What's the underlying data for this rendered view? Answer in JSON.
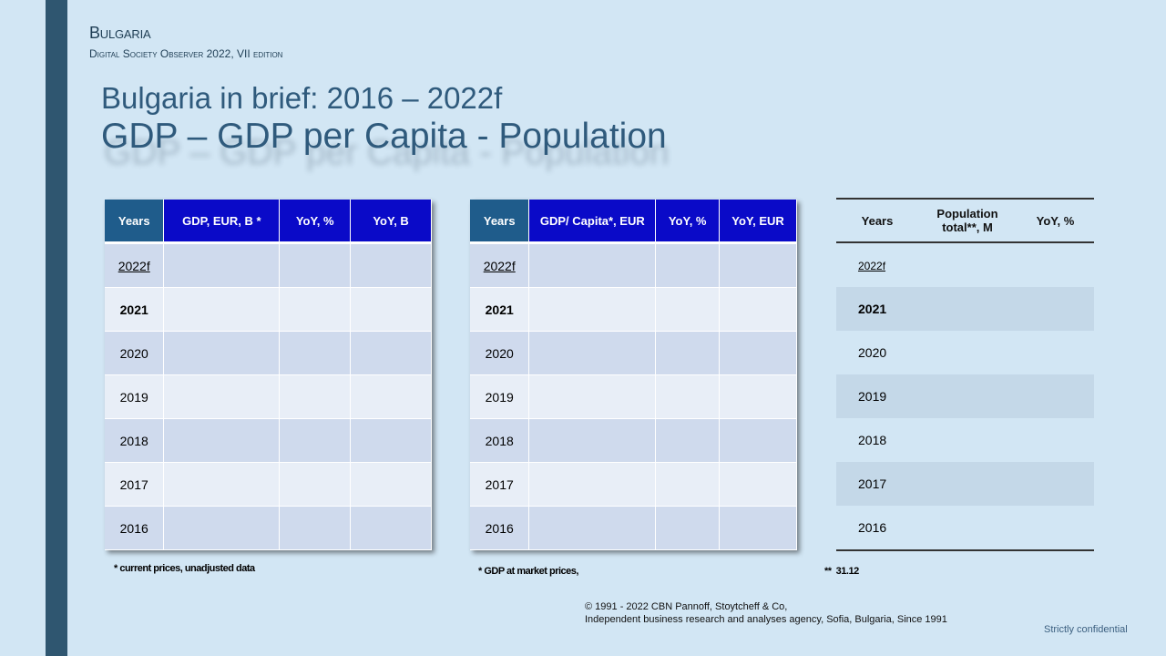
{
  "header": {
    "country": "Bulgaria",
    "subtitle": "Digital Society Observer 2022, VII edition"
  },
  "title": {
    "line1": "Bulgaria in brief: 2016 – 2022f",
    "line2": "GDP – GDP per Capita - Population"
  },
  "table_gdp": {
    "headers": [
      "Years",
      "GDP, EUR, B *",
      "YoY, %",
      "YoY, B"
    ],
    "years": [
      "2022f",
      "2021",
      "2020",
      "2019",
      "2018",
      "2017",
      "2016"
    ]
  },
  "table_gdp_capita": {
    "headers": [
      "Years",
      "GDP/ Capita*, EUR",
      "YoY, %",
      "YoY, EUR"
    ],
    "years": [
      "2022f",
      "2021",
      "2020",
      "2019",
      "2018",
      "2017",
      "2016"
    ]
  },
  "table_population": {
    "headers": [
      "Years",
      "Population total**, M",
      "YoY, %"
    ],
    "years": [
      "2022f",
      "2021",
      "2020",
      "2019",
      "2018",
      "2017",
      "2016"
    ]
  },
  "notes": {
    "gdp": "* current prices, unadjusted data",
    "gdp_capita": "* GDP at market prices,",
    "population": "**  31.12"
  },
  "footer": {
    "line1": "© 1991 - 2022 CBN  Pannoff, Stoytcheff & Co,",
    "line2": "Independent business research and analyses agency, Sofia, Bulgaria, Since 1991"
  },
  "confidential": "Strictly confidential",
  "colors": {
    "sidebar": "#2f5670",
    "background": "#d2e6f4",
    "header_blue": "#0a0ac8",
    "years_header": "#1f5c8b"
  }
}
